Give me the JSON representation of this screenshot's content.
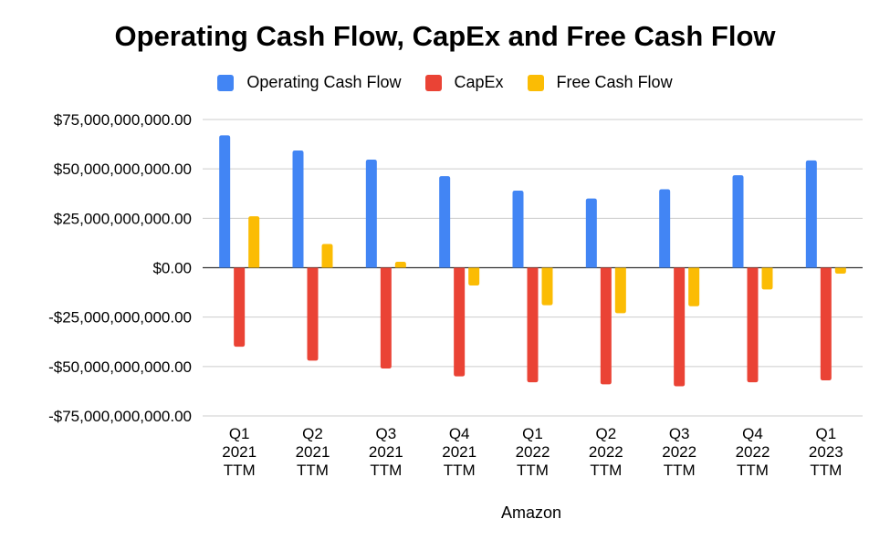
{
  "chart_data": {
    "type": "bar",
    "title": "Operating Cash Flow, CapEx and Free Cash Flow",
    "xlabel": "Amazon",
    "ylabel": "",
    "categories": [
      [
        "Q1",
        "2021",
        "TTM"
      ],
      [
        "Q2",
        "2021",
        "TTM"
      ],
      [
        "Q3",
        "2021",
        "TTM"
      ],
      [
        "Q4",
        "2021",
        "TTM"
      ],
      [
        "Q1",
        "2022",
        "TTM"
      ],
      [
        "Q2",
        "2022",
        "TTM"
      ],
      [
        "Q3",
        "2022",
        "TTM"
      ],
      [
        "Q4",
        "2022",
        "TTM"
      ],
      [
        "Q1",
        "2023",
        "TTM"
      ]
    ],
    "series": [
      {
        "name": "Operating Cash Flow",
        "color": "#4285F4",
        "values": [
          67000000000,
          59300000000,
          54700000000,
          46300000000,
          39000000000,
          35000000000,
          39700000000,
          46800000000,
          54300000000
        ]
      },
      {
        "name": "CapEx",
        "color": "#EA4335",
        "values": [
          -40000000000,
          -47000000000,
          -51000000000,
          -55000000000,
          -58000000000,
          -59000000000,
          -60000000000,
          -58000000000,
          -57000000000
        ]
      },
      {
        "name": "Free Cash Flow",
        "color": "#FBBC04",
        "values": [
          26000000000,
          12000000000,
          3000000000,
          -9000000000,
          -19000000000,
          -23000000000,
          -19500000000,
          -11000000000,
          -3000000000
        ]
      }
    ],
    "yticks": [
      {
        "value": 75000000000,
        "label": "$75,000,000,000.00"
      },
      {
        "value": 50000000000,
        "label": "$50,000,000,000.00"
      },
      {
        "value": 25000000000,
        "label": "$25,000,000,000.00"
      },
      {
        "value": 0,
        "label": "$0.00"
      },
      {
        "value": -25000000000,
        "label": "-$25,000,000,000.00"
      },
      {
        "value": -50000000000,
        "label": "-$50,000,000,000.00"
      },
      {
        "value": -75000000000,
        "label": "-$75,000,000,000.00"
      }
    ],
    "ylim": [
      -75000000000,
      75000000000
    ],
    "grid": true,
    "legend_position": "top-center"
  }
}
